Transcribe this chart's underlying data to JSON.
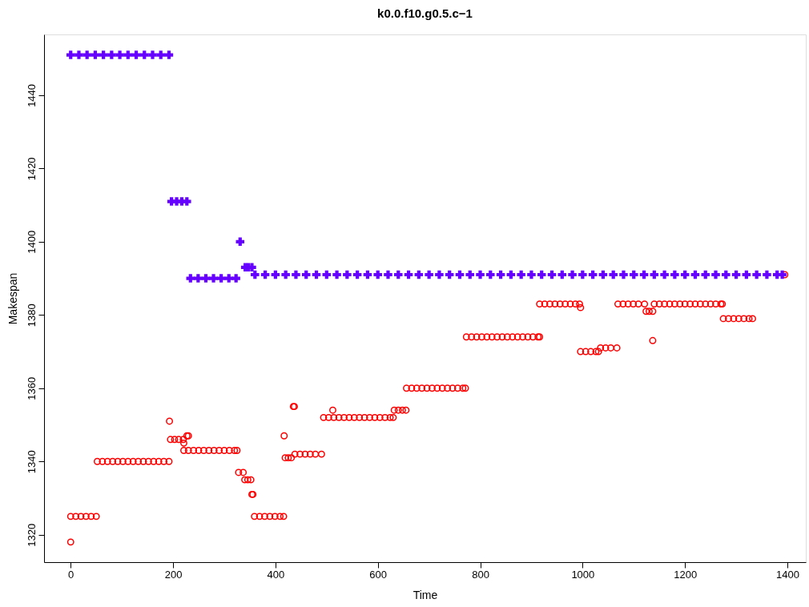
{
  "chart_data": {
    "type": "scatter",
    "title": "k0.0.f10.g0.5.c−1",
    "xlabel": "Time",
    "ylabel": "Makespan",
    "xlim": [
      -52,
      1436
    ],
    "ylim": [
      1312.5,
      1456.6
    ],
    "xticks": [
      0,
      200,
      400,
      600,
      800,
      1000,
      1200,
      1400
    ],
    "yticks": [
      1320,
      1340,
      1360,
      1380,
      1400,
      1420,
      1440
    ],
    "grid": false,
    "series": [
      {
        "color": "#ff0000",
        "marker": "circle",
        "x": [
          0,
          0,
          10,
          20,
          30,
          40,
          50,
          52,
          62,
          72,
          82,
          92,
          102,
          112,
          122,
          132,
          142,
          152,
          162,
          172,
          182,
          192,
          193,
          195,
          203,
          211,
          220,
          221,
          221,
          227,
          230,
          230,
          240,
          250,
          260,
          270,
          280,
          290,
          300,
          310,
          320,
          325,
          328,
          337,
          340,
          346,
          352,
          354,
          356,
          359,
          369,
          379,
          389,
          399,
          409,
          416,
          417,
          419,
          425,
          431,
          435,
          437,
          438,
          448,
          458,
          468,
          478,
          490,
          494,
          504,
          514,
          524,
          534,
          544,
          554,
          564,
          574,
          584,
          594,
          604,
          614,
          624,
          630,
          512,
          632,
          640,
          648,
          655,
          656,
          666,
          676,
          686,
          696,
          706,
          716,
          726,
          736,
          746,
          756,
          766,
          771,
          773,
          783,
          793,
          803,
          813,
          823,
          833,
          843,
          853,
          863,
          873,
          883,
          893,
          903,
          913,
          916,
          916,
          926,
          936,
          946,
          956,
          966,
          976,
          986,
          994,
          996,
          996,
          1006,
          1016,
          1026,
          1031,
          1035,
          1045,
          1055,
          1067,
          1069,
          1079,
          1089,
          1099,
          1109,
          1121,
          1124,
          1130,
          1137,
          1137,
          1140,
          1150,
          1160,
          1170,
          1180,
          1190,
          1200,
          1210,
          1220,
          1230,
          1240,
          1250,
          1260,
          1270,
          1273,
          1275,
          1285,
          1295,
          1305,
          1315,
          1325,
          1332,
          1395
        ],
        "values": [
          1318,
          1325,
          1325,
          1325,
          1325,
          1325,
          1325,
          1340,
          1340,
          1340,
          1340,
          1340,
          1340,
          1340,
          1340,
          1340,
          1340,
          1340,
          1340,
          1340,
          1340,
          1340,
          1351,
          1346,
          1346,
          1346,
          1346,
          1345,
          1343,
          1347,
          1347,
          1343,
          1343,
          1343,
          1343,
          1343,
          1343,
          1343,
          1343,
          1343,
          1343,
          1343,
          1337,
          1337,
          1335,
          1335,
          1335,
          1331,
          1331,
          1325,
          1325,
          1325,
          1325,
          1325,
          1325,
          1325,
          1347,
          1341,
          1341,
          1341,
          1355,
          1355,
          1342,
          1342,
          1342,
          1342,
          1342,
          1342,
          1352,
          1352,
          1352,
          1352,
          1352,
          1352,
          1352,
          1352,
          1352,
          1352,
          1352,
          1352,
          1352,
          1352,
          1352,
          1354,
          1354,
          1354,
          1354,
          1354,
          1360,
          1360,
          1360,
          1360,
          1360,
          1360,
          1360,
          1360,
          1360,
          1360,
          1360,
          1360,
          1360,
          1374,
          1374,
          1374,
          1374,
          1374,
          1374,
          1374,
          1374,
          1374,
          1374,
          1374,
          1374,
          1374,
          1374,
          1374,
          1374,
          1383,
          1383,
          1383,
          1383,
          1383,
          1383,
          1383,
          1383,
          1383,
          1382,
          1370,
          1370,
          1370,
          1370,
          1370,
          1371,
          1371,
          1371,
          1371,
          1383,
          1383,
          1383,
          1383,
          1383,
          1383,
          1381,
          1381,
          1381,
          1373,
          1383,
          1383,
          1383,
          1383,
          1383,
          1383,
          1383,
          1383,
          1383,
          1383,
          1383,
          1383,
          1383,
          1383,
          1383,
          1379,
          1379,
          1379,
          1379,
          1379,
          1379,
          1379,
          1391
        ]
      },
      {
        "color": "#6600ff",
        "marker": "cross",
        "x": [
          0,
          16,
          32,
          48,
          64,
          80,
          96,
          112,
          128,
          144,
          160,
          176,
          192,
          197,
          207,
          217,
          227,
          234,
          249,
          264,
          279,
          294,
          309,
          323,
          331,
          341,
          347,
          354,
          360,
          380,
          400,
          420,
          440,
          460,
          480,
          500,
          520,
          540,
          560,
          580,
          600,
          620,
          640,
          660,
          680,
          700,
          720,
          740,
          760,
          780,
          800,
          820,
          840,
          860,
          880,
          900,
          920,
          940,
          960,
          980,
          1000,
          1020,
          1040,
          1060,
          1080,
          1100,
          1120,
          1140,
          1160,
          1180,
          1200,
          1220,
          1240,
          1260,
          1280,
          1300,
          1320,
          1340,
          1360,
          1380,
          1390
        ],
        "values": [
          1451,
          1451,
          1451,
          1451,
          1451,
          1451,
          1451,
          1451,
          1451,
          1451,
          1451,
          1451,
          1451,
          1411,
          1411,
          1411,
          1411,
          1390,
          1390,
          1390,
          1390,
          1390,
          1390,
          1390,
          1400,
          1393,
          1393,
          1393,
          1391,
          1391,
          1391,
          1391,
          1391,
          1391,
          1391,
          1391,
          1391,
          1391,
          1391,
          1391,
          1391,
          1391,
          1391,
          1391,
          1391,
          1391,
          1391,
          1391,
          1391,
          1391,
          1391,
          1391,
          1391,
          1391,
          1391,
          1391,
          1391,
          1391,
          1391,
          1391,
          1391,
          1391,
          1391,
          1391,
          1391,
          1391,
          1391,
          1391,
          1391,
          1391,
          1391,
          1391,
          1391,
          1391,
          1391,
          1391,
          1391,
          1391,
          1391,
          1391,
          1391
        ]
      }
    ]
  }
}
